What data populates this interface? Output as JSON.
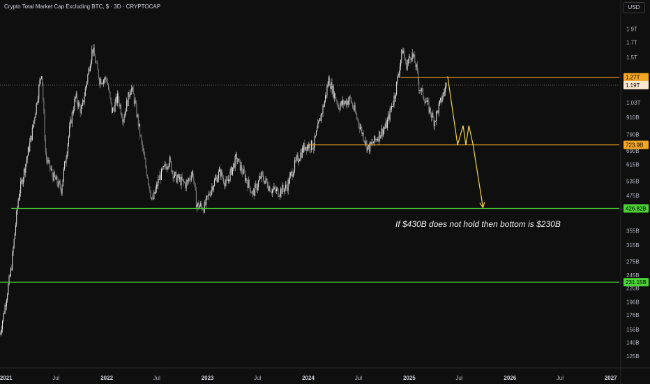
{
  "header": {
    "title": "Crypto Total Market Cap Excluding BTC, $ · 3D · CRYPTOCAP",
    "currency": "USD"
  },
  "annotation": "If $430B does not hold then bottom is $230B",
  "colors": {
    "background": "#0f0f0f",
    "candle_up": "#e8e8e8",
    "candle_down": "#8a8a8a",
    "level_orange": "#f5a623",
    "level_green": "#4cd137",
    "projection": "#f5d547"
  },
  "chart_data": {
    "type": "candlestick",
    "scale": "log",
    "title": "Crypto Total Market Cap Excluding BTC, $ · 3D · CRYPTOCAP",
    "y_unit": "USD",
    "y_ticks": [
      "1.9T",
      "1.7T",
      "1.5T",
      "1.27T",
      "1.19T",
      "1.03T",
      "910B",
      "790B",
      "723.9B",
      "690B",
      "615B",
      "535B",
      "475B",
      "426.82B",
      "355B",
      "315B",
      "275B",
      "245B",
      "231.15B",
      "220B",
      "196B",
      "176B",
      "156B",
      "140B",
      "125B"
    ],
    "x_ticks": [
      {
        "label": "2021",
        "year": true
      },
      {
        "label": "Jul",
        "year": false
      },
      {
        "label": "2022",
        "year": true
      },
      {
        "label": "Jul",
        "year": false
      },
      {
        "label": "2023",
        "year": true
      },
      {
        "label": "Jul",
        "year": false
      },
      {
        "label": "2024",
        "year": true
      },
      {
        "label": "Jul",
        "year": false
      },
      {
        "label": "2025",
        "year": true
      },
      {
        "label": "Jul",
        "year": false
      },
      {
        "label": "2026",
        "year": true
      },
      {
        "label": "Jul",
        "year": false
      },
      {
        "label": "2027",
        "year": true
      }
    ],
    "x_range": [
      "2020-12",
      "2027-01"
    ],
    "price_path": [
      [
        "2020-12-10",
        150
      ],
      [
        "2021-01-01",
        200
      ],
      [
        "2021-01-20",
        260
      ],
      [
        "2021-02-15",
        470
      ],
      [
        "2021-03-10",
        600
      ],
      [
        "2021-04-05",
        800
      ],
      [
        "2021-05-10",
        1350
      ],
      [
        "2021-05-25",
        650
      ],
      [
        "2021-06-20",
        560
      ],
      [
        "2021-07-20",
        500
      ],
      [
        "2021-08-25",
        900
      ],
      [
        "2021-09-10",
        1080
      ],
      [
        "2021-10-01",
        950
      ],
      [
        "2021-11-10",
        1620
      ],
      [
        "2021-12-05",
        1250
      ],
      [
        "2022-01-01",
        1250
      ],
      [
        "2022-01-20",
        950
      ],
      [
        "2022-02-10",
        1080
      ],
      [
        "2022-03-01",
        900
      ],
      [
        "2022-03-30",
        1180
      ],
      [
        "2022-04-15",
        1000
      ],
      [
        "2022-05-10",
        700
      ],
      [
        "2022-06-15",
        450
      ],
      [
        "2022-07-10",
        550
      ],
      [
        "2022-08-15",
        640
      ],
      [
        "2022-09-01",
        560
      ],
      [
        "2022-10-15",
        520
      ],
      [
        "2022-11-08",
        580
      ],
      [
        "2022-11-22",
        440
      ],
      [
        "2022-12-20",
        430
      ],
      [
        "2023-01-20",
        520
      ],
      [
        "2023-02-15",
        580
      ],
      [
        "2023-03-10",
        520
      ],
      [
        "2023-04-15",
        650
      ],
      [
        "2023-05-15",
        560
      ],
      [
        "2023-06-15",
        480
      ],
      [
        "2023-07-15",
        560
      ],
      [
        "2023-08-20",
        500
      ],
      [
        "2023-09-15",
        490
      ],
      [
        "2023-10-15",
        510
      ],
      [
        "2023-11-15",
        620
      ],
      [
        "2023-12-20",
        720
      ],
      [
        "2024-01-20",
        720
      ],
      [
        "2024-03-01",
        1050
      ],
      [
        "2024-03-15",
        1250
      ],
      [
        "2024-04-20",
        1000
      ],
      [
        "2024-06-01",
        1060
      ],
      [
        "2024-07-05",
        850
      ],
      [
        "2024-08-05",
        700
      ],
      [
        "2024-09-15",
        790
      ],
      [
        "2024-10-10",
        850
      ],
      [
        "2024-11-10",
        1100
      ],
      [
        "2024-12-08",
        1620
      ],
      [
        "2024-12-20",
        1400
      ],
      [
        "2025-01-10",
        1550
      ],
      [
        "2025-01-25",
        1400
      ],
      [
        "2025-02-05",
        1180
      ],
      [
        "2025-03-01",
        1050
      ],
      [
        "2025-04-01",
        880
      ],
      [
        "2025-04-15",
        970
      ],
      [
        "2025-05-15",
        1190
      ]
    ],
    "levels": [
      {
        "label": "1.27T",
        "value": 1270,
        "color": "orange",
        "start": "2024-12-01"
      },
      {
        "label": "723.9B",
        "value": 723.9,
        "color": "orange",
        "start": "2024-01-01"
      },
      {
        "label": "426.82B",
        "value": 426.82,
        "color": "green",
        "start": "2021-01-20"
      },
      {
        "label": "231.15B",
        "value": 231.15,
        "color": "green",
        "start": "2020-12-01"
      }
    ],
    "current_price_label": "1.19T",
    "current_price_value": 1190,
    "projection": [
      [
        "2025-05-20",
        1280
      ],
      [
        "2025-06-25",
        723.9
      ],
      [
        "2025-07-15",
        850
      ],
      [
        "2025-07-25",
        723.9
      ],
      [
        "2025-08-05",
        850
      ],
      [
        "2025-08-20",
        723.9
      ],
      [
        "2025-09-25",
        430
      ]
    ]
  }
}
